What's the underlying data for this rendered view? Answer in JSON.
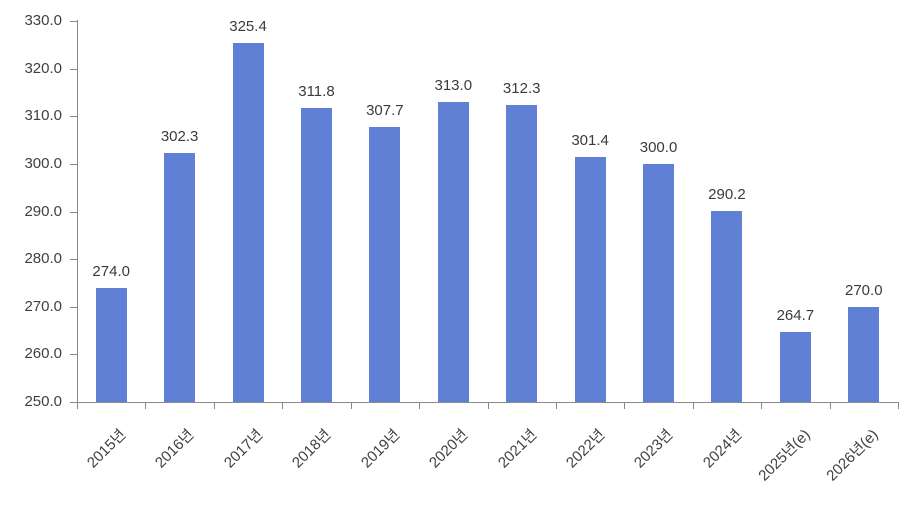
{
  "chart_data": {
    "type": "bar",
    "title": "",
    "categories": [
      "2015년",
      "2016년",
      "2017년",
      "2018년",
      "2019년",
      "2020년",
      "2021년",
      "2022년",
      "2023년",
      "2024년",
      "2025년(e)",
      "2026년(e)"
    ],
    "values": [
      274.0,
      302.3,
      325.4,
      311.8,
      307.7,
      313.0,
      312.3,
      301.4,
      300.0,
      290.2,
      264.7,
      270.0
    ],
    "value_labels": [
      "274.0",
      "302.3",
      "325.4",
      "311.8",
      "307.7",
      "313.0",
      "312.3",
      "301.4",
      "300.0",
      "290.2",
      "264.7",
      "270.0"
    ],
    "ytick_labels": [
      "250.0",
      "260.0",
      "270.0",
      "280.0",
      "290.0",
      "300.0",
      "310.0",
      "320.0",
      "330.0"
    ],
    "ylim": [
      250.0,
      330.0
    ],
    "ytick_step": 10,
    "grid": false,
    "legend": null,
    "xlabel": "",
    "ylabel": "",
    "bar_color": "#5F80D5",
    "axis_color": "#898989",
    "text_color": "#404040"
  }
}
